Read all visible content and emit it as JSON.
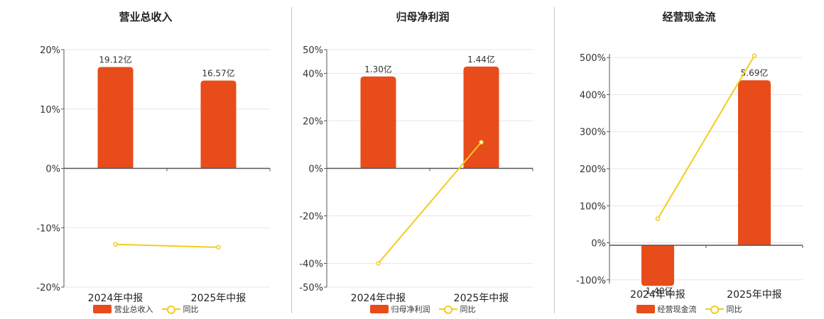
{
  "colors": {
    "bar": "#e84c1a",
    "line": "#f2cd1b",
    "axis": "#555555",
    "grid": "#e6e6e6"
  },
  "chart_data": [
    {
      "type": "bar",
      "title": "营业总收入",
      "categories": [
        "2024年中报",
        "2025年中报"
      ],
      "series": [
        {
          "name": "营业总收入",
          "type": "bar",
          "values": [
            19.12,
            16.57
          ],
          "labels": [
            "19.12亿",
            "16.57亿"
          ]
        },
        {
          "name": "同比",
          "type": "line",
          "values": [
            -12.8,
            -13.3
          ]
        }
      ],
      "yticks": [
        20,
        10,
        0,
        -10,
        -20
      ],
      "ytick_labels": [
        "20%",
        "10%",
        "0%",
        "-10%",
        "-20%"
      ],
      "ylim": [
        -20,
        20
      ],
      "bar_scale_max": 22.4,
      "legend": "bottom",
      "grid": true
    },
    {
      "type": "bar",
      "title": "归母净利润",
      "categories": [
        "2024年中报",
        "2025年中报"
      ],
      "series": [
        {
          "name": "归母净利润",
          "type": "bar",
          "values": [
            1.3,
            1.44
          ],
          "labels": [
            "1.30亿",
            "1.44亿"
          ]
        },
        {
          "name": "同比",
          "type": "line",
          "values": [
            -40,
            11
          ]
        }
      ],
      "yticks": [
        50,
        40,
        20,
        0,
        -20,
        -40,
        -50
      ],
      "ytick_labels": [
        "50%",
        "40%",
        "20%",
        "0%",
        "-20%",
        "-40%",
        "-50%"
      ],
      "ylim": [
        -50,
        50
      ],
      "bar_scale_max": 1.68,
      "legend": "bottom",
      "grid": true
    },
    {
      "type": "bar",
      "title": "经营现金流",
      "categories": [
        "2024年中报",
        "2025年中报"
      ],
      "series": [
        {
          "name": "经营现金流",
          "type": "bar",
          "values": [
            -1.4,
            5.69
          ],
          "labels": [
            "-1.40亿",
            "5.69亿"
          ]
        },
        {
          "name": "同比",
          "type": "line",
          "values": [
            65,
            505
          ]
        }
      ],
      "yticks": [
        500,
        400,
        300,
        200,
        100,
        0,
        -100
      ],
      "ytick_labels": [
        "500%",
        "400%",
        "300%",
        "200%",
        "100%",
        "0%",
        "-100%"
      ],
      "ylim": [
        -110,
        510
      ],
      "bar_scale_max": 6.6,
      "legend": "bottom",
      "grid": true
    }
  ]
}
